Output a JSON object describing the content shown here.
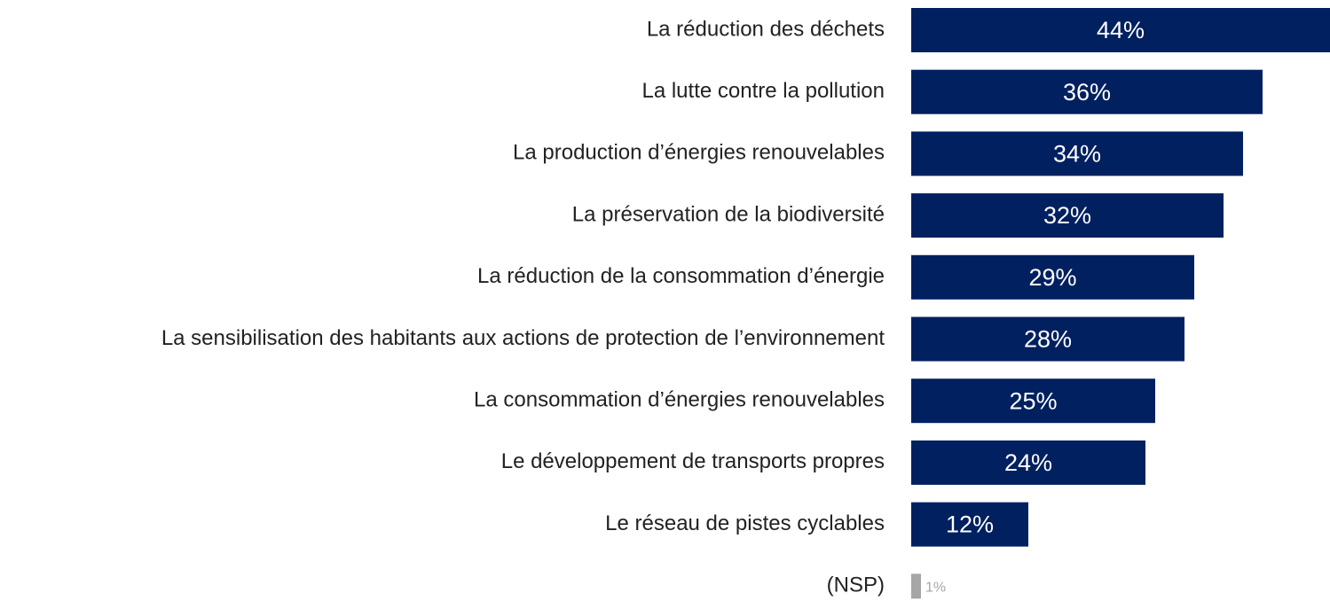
{
  "chart_data": {
    "type": "bar",
    "orientation": "horizontal",
    "categories": [
      "La réduction des déchets",
      "La lutte contre la pollution",
      "La production d’énergies renouvelables",
      "La préservation de la biodiversité",
      "La réduction de la consommation d’énergie",
      "La sensibilisation des habitants aux actions de protection de l’environnement",
      "La consommation d’énergies renouvelables",
      "Le développement de transports propres",
      "Le réseau de pistes cyclables",
      "(NSP)"
    ],
    "values": [
      44,
      36,
      34,
      32,
      29,
      28,
      25,
      24,
      12,
      1
    ],
    "value_labels": [
      "44%",
      "36%",
      "34%",
      "32%",
      "29%",
      "28%",
      "25%",
      "24%",
      "12%",
      "1%"
    ],
    "colors": [
      "#002060",
      "#002060",
      "#002060",
      "#002060",
      "#002060",
      "#002060",
      "#002060",
      "#002060",
      "#002060",
      "#a6a6a6"
    ]
  }
}
